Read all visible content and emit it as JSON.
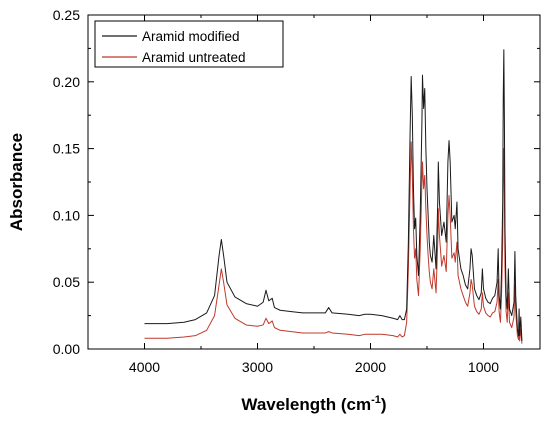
{
  "chart_data": {
    "type": "line",
    "xlabel": "Wavelength (cm",
    "xlabel_sup": "-1",
    "xlabel_end": ")",
    "ylabel": "Absorbance",
    "xlim": [
      4500,
      500
    ],
    "ylim": [
      0,
      0.25
    ],
    "x_ticks": [
      4000,
      3000,
      2000,
      1000
    ],
    "x_tick_labels": [
      "4000",
      "3000",
      "2000",
      "1000"
    ],
    "y_ticks": [
      0.0,
      0.05,
      0.1,
      0.15,
      0.2,
      0.25
    ],
    "y_tick_labels": [
      "0.00",
      "0.05",
      "0.10",
      "0.15",
      "0.20",
      "0.25"
    ],
    "grid": false,
    "legend_position": "top-left",
    "series": [
      {
        "name": "Aramid modified",
        "color": "#1a1a1a",
        "points": [
          [
            4000,
            0.019
          ],
          [
            3800,
            0.019
          ],
          [
            3650,
            0.02
          ],
          [
            3550,
            0.022
          ],
          [
            3450,
            0.027
          ],
          [
            3380,
            0.04
          ],
          [
            3340,
            0.07
          ],
          [
            3320,
            0.082
          ],
          [
            3300,
            0.07
          ],
          [
            3270,
            0.05
          ],
          [
            3200,
            0.039
          ],
          [
            3100,
            0.034
          ],
          [
            3000,
            0.032
          ],
          [
            2950,
            0.035
          ],
          [
            2925,
            0.044
          ],
          [
            2900,
            0.036
          ],
          [
            2870,
            0.038
          ],
          [
            2850,
            0.031
          ],
          [
            2800,
            0.029
          ],
          [
            2700,
            0.028
          ],
          [
            2600,
            0.027
          ],
          [
            2500,
            0.027
          ],
          [
            2400,
            0.027
          ],
          [
            2370,
            0.031
          ],
          [
            2340,
            0.027
          ],
          [
            2200,
            0.026
          ],
          [
            2100,
            0.025
          ],
          [
            2050,
            0.026
          ],
          [
            2000,
            0.026
          ],
          [
            1900,
            0.025
          ],
          [
            1800,
            0.023
          ],
          [
            1760,
            0.022
          ],
          [
            1740,
            0.025
          ],
          [
            1720,
            0.022
          ],
          [
            1700,
            0.022
          ],
          [
            1680,
            0.03
          ],
          [
            1665,
            0.08
          ],
          [
            1650,
            0.16
          ],
          [
            1640,
            0.204
          ],
          [
            1630,
            0.175
          ],
          [
            1620,
            0.12
          ],
          [
            1610,
            0.09
          ],
          [
            1600,
            0.098
          ],
          [
            1590,
            0.07
          ],
          [
            1575,
            0.055
          ],
          [
            1560,
            0.1
          ],
          [
            1545,
            0.17
          ],
          [
            1540,
            0.205
          ],
          [
            1530,
            0.18
          ],
          [
            1520,
            0.195
          ],
          [
            1510,
            0.15
          ],
          [
            1500,
            0.12
          ],
          [
            1490,
            0.1
          ],
          [
            1480,
            0.08
          ],
          [
            1470,
            0.07
          ],
          [
            1455,
            0.065
          ],
          [
            1440,
            0.085
          ],
          [
            1420,
            0.06
          ],
          [
            1405,
            0.11
          ],
          [
            1400,
            0.14
          ],
          [
            1390,
            0.11
          ],
          [
            1370,
            0.085
          ],
          [
            1350,
            0.095
          ],
          [
            1330,
            0.08
          ],
          [
            1315,
            0.14
          ],
          [
            1305,
            0.156
          ],
          [
            1295,
            0.14
          ],
          [
            1280,
            0.095
          ],
          [
            1260,
            0.1
          ],
          [
            1250,
            0.09
          ],
          [
            1235,
            0.11
          ],
          [
            1225,
            0.075
          ],
          [
            1200,
            0.06
          ],
          [
            1180,
            0.055
          ],
          [
            1160,
            0.048
          ],
          [
            1140,
            0.045
          ],
          [
            1120,
            0.06
          ],
          [
            1110,
            0.075
          ],
          [
            1100,
            0.07
          ],
          [
            1080,
            0.045
          ],
          [
            1060,
            0.04
          ],
          [
            1040,
            0.037
          ],
          [
            1020,
            0.042
          ],
          [
            1010,
            0.06
          ],
          [
            1000,
            0.045
          ],
          [
            980,
            0.038
          ],
          [
            960,
            0.035
          ],
          [
            940,
            0.034
          ],
          [
            920,
            0.038
          ],
          [
            900,
            0.04
          ],
          [
            880,
            0.05
          ],
          [
            870,
            0.075
          ],
          [
            862,
            0.04
          ],
          [
            850,
            0.03
          ],
          [
            840,
            0.06
          ],
          [
            830,
            0.11
          ],
          [
            825,
            0.19
          ],
          [
            820,
            0.224
          ],
          [
            815,
            0.17
          ],
          [
            810,
            0.09
          ],
          [
            800,
            0.04
          ],
          [
            790,
            0.03
          ],
          [
            780,
            0.06
          ],
          [
            770,
            0.03
          ],
          [
            750,
            0.025
          ],
          [
            730,
            0.035
          ],
          [
            722,
            0.073
          ],
          [
            715,
            0.04
          ],
          [
            700,
            0.015
          ],
          [
            690,
            0.01
          ],
          [
            685,
            0.03
          ],
          [
            680,
            0.01
          ],
          [
            670,
            0.024
          ],
          [
            660,
            0.006
          ]
        ]
      },
      {
        "name": "Aramid untreated",
        "color": "#c0392b",
        "points": [
          [
            4000,
            0.008
          ],
          [
            3800,
            0.008
          ],
          [
            3650,
            0.009
          ],
          [
            3550,
            0.01
          ],
          [
            3450,
            0.014
          ],
          [
            3380,
            0.025
          ],
          [
            3340,
            0.048
          ],
          [
            3320,
            0.06
          ],
          [
            3300,
            0.05
          ],
          [
            3270,
            0.033
          ],
          [
            3200,
            0.023
          ],
          [
            3100,
            0.018
          ],
          [
            3000,
            0.017
          ],
          [
            2950,
            0.018
          ],
          [
            2925,
            0.023
          ],
          [
            2900,
            0.019
          ],
          [
            2870,
            0.021
          ],
          [
            2850,
            0.016
          ],
          [
            2800,
            0.014
          ],
          [
            2700,
            0.013
          ],
          [
            2600,
            0.012
          ],
          [
            2500,
            0.012
          ],
          [
            2400,
            0.012
          ],
          [
            2370,
            0.013
          ],
          [
            2340,
            0.012
          ],
          [
            2200,
            0.011
          ],
          [
            2100,
            0.01
          ],
          [
            2050,
            0.011
          ],
          [
            2000,
            0.011
          ],
          [
            1900,
            0.011
          ],
          [
            1800,
            0.01
          ],
          [
            1760,
            0.009
          ],
          [
            1740,
            0.011
          ],
          [
            1720,
            0.009
          ],
          [
            1700,
            0.01
          ],
          [
            1680,
            0.02
          ],
          [
            1665,
            0.06
          ],
          [
            1650,
            0.12
          ],
          [
            1640,
            0.155
          ],
          [
            1630,
            0.13
          ],
          [
            1620,
            0.09
          ],
          [
            1610,
            0.068
          ],
          [
            1600,
            0.075
          ],
          [
            1590,
            0.052
          ],
          [
            1575,
            0.04
          ],
          [
            1560,
            0.075
          ],
          [
            1545,
            0.125
          ],
          [
            1540,
            0.14
          ],
          [
            1530,
            0.12
          ],
          [
            1520,
            0.13
          ],
          [
            1510,
            0.105
          ],
          [
            1500,
            0.085
          ],
          [
            1490,
            0.07
          ],
          [
            1480,
            0.058
          ],
          [
            1470,
            0.05
          ],
          [
            1455,
            0.045
          ],
          [
            1440,
            0.06
          ],
          [
            1420,
            0.042
          ],
          [
            1405,
            0.08
          ],
          [
            1400,
            0.105
          ],
          [
            1390,
            0.085
          ],
          [
            1370,
            0.062
          ],
          [
            1350,
            0.07
          ],
          [
            1330,
            0.058
          ],
          [
            1315,
            0.1
          ],
          [
            1305,
            0.115
          ],
          [
            1295,
            0.1
          ],
          [
            1280,
            0.068
          ],
          [
            1260,
            0.072
          ],
          [
            1250,
            0.065
          ],
          [
            1235,
            0.08
          ],
          [
            1225,
            0.055
          ],
          [
            1200,
            0.045
          ],
          [
            1180,
            0.04
          ],
          [
            1160,
            0.035
          ],
          [
            1140,
            0.032
          ],
          [
            1120,
            0.042
          ],
          [
            1110,
            0.052
          ],
          [
            1100,
            0.048
          ],
          [
            1080,
            0.032
          ],
          [
            1060,
            0.028
          ],
          [
            1040,
            0.026
          ],
          [
            1020,
            0.03
          ],
          [
            1010,
            0.042
          ],
          [
            1000,
            0.032
          ],
          [
            980,
            0.027
          ],
          [
            960,
            0.025
          ],
          [
            940,
            0.024
          ],
          [
            920,
            0.027
          ],
          [
            900,
            0.028
          ],
          [
            880,
            0.035
          ],
          [
            870,
            0.052
          ],
          [
            862,
            0.028
          ],
          [
            850,
            0.02
          ],
          [
            840,
            0.042
          ],
          [
            830,
            0.08
          ],
          [
            825,
            0.13
          ],
          [
            820,
            0.15
          ],
          [
            815,
            0.115
          ],
          [
            810,
            0.062
          ],
          [
            800,
            0.028
          ],
          [
            790,
            0.02
          ],
          [
            780,
            0.042
          ],
          [
            770,
            0.02
          ],
          [
            750,
            0.016
          ],
          [
            730,
            0.024
          ],
          [
            722,
            0.048
          ],
          [
            715,
            0.028
          ],
          [
            700,
            0.01
          ],
          [
            690,
            0.007
          ],
          [
            685,
            0.018
          ],
          [
            680,
            0.006
          ],
          [
            670,
            0.015
          ],
          [
            660,
            0.004
          ]
        ]
      }
    ]
  }
}
